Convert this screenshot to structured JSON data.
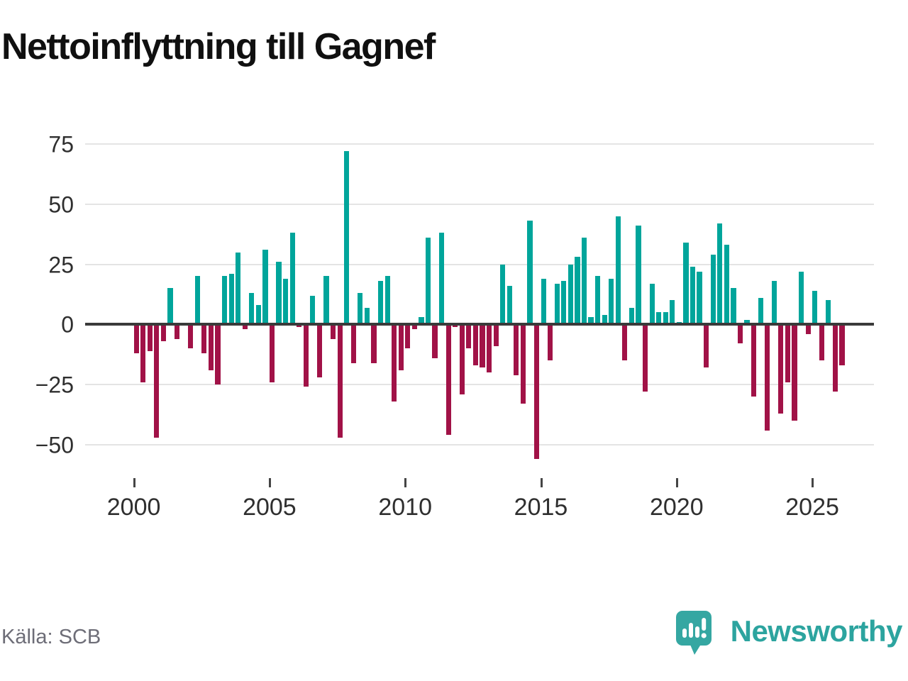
{
  "title": "Nettoinflyttning till Gagnef",
  "source": "Källa: SCB",
  "brand": "Newsworthy",
  "colors": {
    "positive": "#00a59b",
    "negative": "#a11247",
    "grid": "#e4e4e4",
    "zero_line": "#3a3a3a",
    "axis_text": "#2f2f2f",
    "title_text": "#101010",
    "source_text": "#6d6d77",
    "logo_teal": "#35a7a2"
  },
  "chart_data": {
    "type": "bar",
    "title": "Nettoinflyttning till Gagnef",
    "x_unit": "quarter",
    "start_period": "2000 Q1",
    "end_period": "2026 Q1",
    "ylim": [
      -62,
      80
    ],
    "grid": true,
    "ytick_values": [
      75,
      50,
      25,
      0,
      -25,
      -50
    ],
    "ytick_labels": [
      "75",
      "50",
      "25",
      "0",
      "−25",
      "−50"
    ],
    "xticks": [
      {
        "label": "2000",
        "index": 0
      },
      {
        "label": "2005",
        "index": 20
      },
      {
        "label": "2010",
        "index": 40
      },
      {
        "label": "2015",
        "index": 60
      },
      {
        "label": "2020",
        "index": 80
      },
      {
        "label": "2025",
        "index": 100
      }
    ],
    "values": [
      -12,
      -24,
      -11,
      -47,
      -7,
      15,
      -6,
      0,
      -10,
      20,
      -12,
      -19,
      -25,
      20,
      21,
      30,
      -2,
      13,
      8,
      31,
      -24,
      26,
      19,
      38,
      -1,
      -26,
      12,
      -22,
      20,
      -6,
      -47,
      72,
      -16,
      13,
      7,
      -16,
      18,
      20,
      -32,
      -19,
      -10,
      -2,
      3,
      36,
      -14,
      38,
      -46,
      -1,
      -29,
      -10,
      -17,
      -18,
      -20,
      -9,
      25,
      16,
      -21,
      -33,
      43,
      -56,
      19,
      -15,
      17,
      18,
      25,
      28,
      36,
      3,
      20,
      4,
      19,
      45,
      -15,
      7,
      41,
      -28,
      17,
      5,
      5,
      10,
      1,
      34,
      24,
      22,
      -18,
      29,
      42,
      33,
      15,
      -8,
      2,
      -30,
      11,
      -44,
      18,
      -37,
      -24,
      -40,
      22,
      -4,
      14,
      -15,
      10,
      -28,
      -17
    ]
  }
}
